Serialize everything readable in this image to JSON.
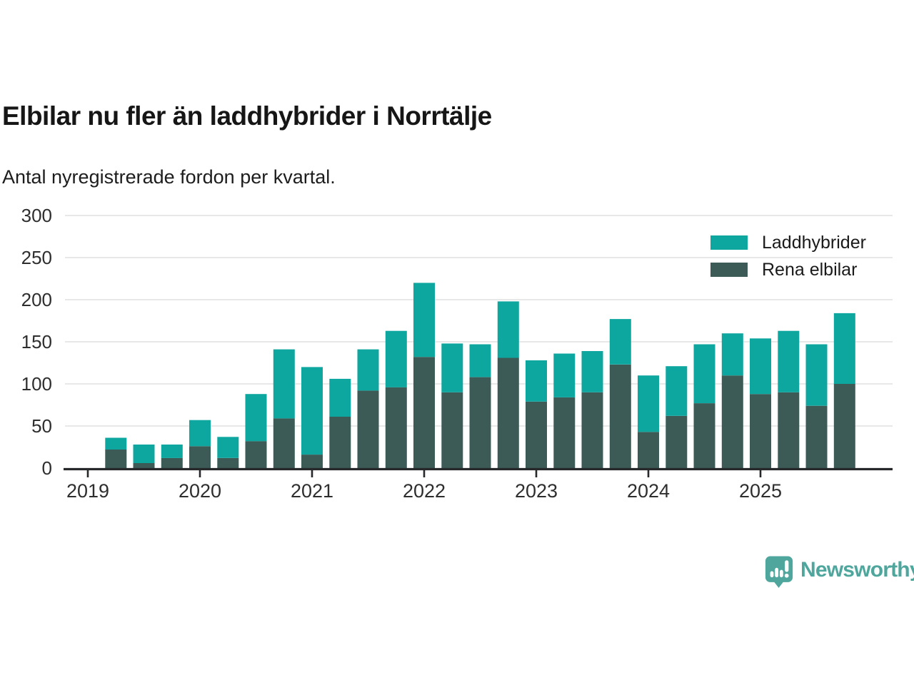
{
  "header": {
    "title": "Elbilar nu fler än laddhybrider i Norrtälje",
    "subtitle": "Antal nyregistrerade fordon per kvartal."
  },
  "legend": [
    {
      "label": "Laddhybrider",
      "color": "#0EA7A0"
    },
    {
      "label": "Rena elbilar",
      "color": "#3C5B56"
    }
  ],
  "branding": {
    "name": "Newsworthy",
    "color": "#4FA69C",
    "icon": "newsworthy-speech-bubble-chart-icon"
  },
  "chart_data": {
    "type": "bar",
    "stacked": true,
    "title": "Elbilar nu fler än laddhybrider i Norrtälje",
    "subtitle": "Antal nyregistrerade fordon per kvartal.",
    "xlabel": "",
    "ylabel": "",
    "x": [
      "2019 Q2",
      "2019 Q3",
      "2019 Q4",
      "2020 Q1",
      "2020 Q2",
      "2020 Q3",
      "2020 Q4",
      "2021 Q1",
      "2021 Q2",
      "2021 Q3",
      "2021 Q4",
      "2022 Q1",
      "2022 Q2",
      "2022 Q3",
      "2022 Q4",
      "2023 Q1",
      "2023 Q2",
      "2023 Q3",
      "2023 Q4",
      "2024 Q1",
      "2024 Q2",
      "2024 Q3",
      "2024 Q4",
      "2025 Q1",
      "2025 Q2",
      "2025 Q3",
      "2025 Q4"
    ],
    "series": [
      {
        "name": "Rena elbilar",
        "color": "#3C5B56",
        "values": [
          22,
          6,
          12,
          26,
          12,
          32,
          59,
          16,
          61,
          92,
          96,
          132,
          90,
          108,
          131,
          79,
          84,
          90,
          123,
          43,
          62,
          77,
          110,
          88,
          90,
          74,
          100
        ]
      },
      {
        "name": "Laddhybrider",
        "color": "#0EA7A0",
        "values": [
          14,
          22,
          16,
          31,
          25,
          56,
          82,
          104,
          45,
          49,
          67,
          88,
          58,
          39,
          67,
          49,
          52,
          49,
          54,
          67,
          59,
          70,
          50,
          66,
          73,
          73,
          84
        ]
      }
    ],
    "stack_order": "first series at bottom",
    "y_ticks": [
      0,
      50,
      100,
      150,
      200,
      250,
      300
    ],
    "ylim": [
      0,
      300
    ],
    "x_tick_labels": [
      "2019",
      "2020",
      "2021",
      "2022",
      "2023",
      "2024",
      "2025"
    ],
    "grid": true,
    "legend_position": "top-right",
    "colors": {
      "gridline": "#d9d9d9",
      "axis": "#26282a",
      "tick_label": "#2e2e2e"
    }
  }
}
